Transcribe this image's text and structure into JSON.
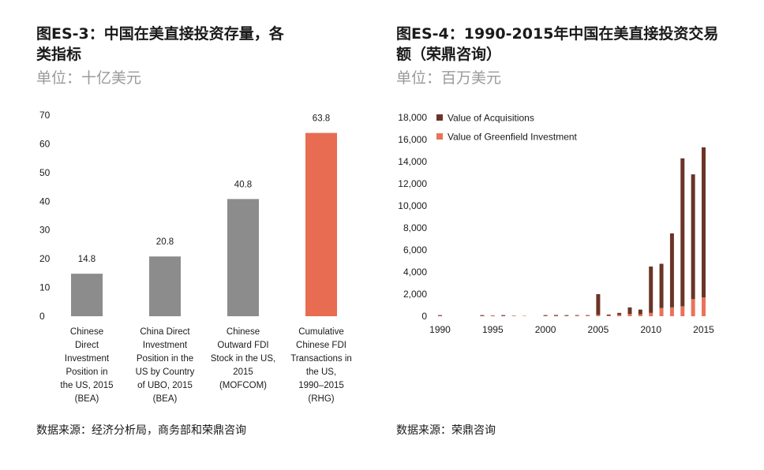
{
  "chart_data": [
    {
      "type": "bar",
      "title": "图ES-3：中国在美直接投资存量，各类指标",
      "subtitle": "单位：十亿美元",
      "source": "数据来源：经济分析局，商务部和荣鼎咨询",
      "ylim": [
        0,
        70
      ],
      "yticks": [
        "0",
        "10",
        "20",
        "30",
        "40",
        "50",
        "60",
        "70"
      ],
      "ytick_values": [
        0,
        10,
        20,
        30,
        40,
        50,
        60,
        70
      ],
      "categories": [
        [
          "Chinese",
          "Direct",
          "Investment",
          "Position in",
          "the US, 2015",
          "(BEA)"
        ],
        [
          "China Direct",
          "Investment",
          "Position in the",
          "US by Country",
          "of UBO, 2015",
          "(BEA)"
        ],
        [
          "Chinese",
          "Outward FDI",
          "Stock in the US,",
          "2015",
          "(MOFCOM)"
        ],
        [
          "Cumulative",
          "Chinese FDI",
          "Transactions in",
          "the US,",
          "1990–2015",
          "(RHG)"
        ]
      ],
      "values": [
        14.8,
        20.8,
        40.8,
        63.8
      ],
      "value_labels": [
        "14.8",
        "20.8",
        "40.8",
        "63.8"
      ],
      "colors": [
        "#8c8c8c",
        "#8c8c8c",
        "#8c8c8c",
        "#e86c52"
      ]
    },
    {
      "type": "bar",
      "stacked": true,
      "title": "图ES-4：1990-2015年中国在美直接投资交易额（荣鼎咨询）",
      "subtitle": "单位：百万美元",
      "source": "数据来源：荣鼎咨询",
      "ylim": [
        0,
        18000
      ],
      "yticks": [
        "0",
        "2,000",
        "4,000",
        "6,000",
        "8,000",
        "10,000",
        "12,000",
        "14,000",
        "16,000",
        "18,000"
      ],
      "ytick_values": [
        0,
        2000,
        4000,
        6000,
        8000,
        10000,
        12000,
        14000,
        16000,
        18000
      ],
      "xtick_labels": [
        "1990",
        "1995",
        "2000",
        "2005",
        "2010",
        "2015"
      ],
      "xtick_years": [
        1990,
        1995,
        2000,
        2005,
        2010,
        2015
      ],
      "x": [
        1990,
        1991,
        1992,
        1993,
        1994,
        1995,
        1996,
        1997,
        1998,
        1999,
        2000,
        2001,
        2002,
        2003,
        2004,
        2005,
        2006,
        2007,
        2008,
        2009,
        2010,
        2011,
        2012,
        2013,
        2014,
        2015
      ],
      "series": [
        {
          "name": "Value of Greenfield Investment",
          "color": "#e8735a",
          "values": [
            30,
            0,
            0,
            0,
            20,
            40,
            20,
            20,
            40,
            0,
            30,
            30,
            40,
            50,
            60,
            120,
            60,
            120,
            200,
            170,
            300,
            750,
            800,
            900,
            1550,
            1700
          ]
        },
        {
          "name": "Value of Acquisitions",
          "color": "#6b3427",
          "values": [
            70,
            0,
            0,
            0,
            80,
            30,
            80,
            30,
            0,
            0,
            70,
            80,
            60,
            50,
            40,
            1880,
            90,
            180,
            600,
            430,
            4200,
            4000,
            6700,
            13400,
            11300,
            13600
          ]
        }
      ],
      "legend": [
        "Value of Acquisitions",
        "Value of Greenfield Investment"
      ],
      "legend_colors": [
        "#6b3427",
        "#e8735a"
      ]
    }
  ]
}
